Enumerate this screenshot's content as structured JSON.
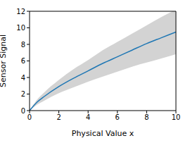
{
  "chart_data": {
    "type": "line",
    "x_label": "Physical Value x",
    "y_label": "Sensor Signal",
    "x": [
      0,
      0.5,
      1,
      2,
      3,
      4,
      5,
      6,
      7,
      8,
      9,
      10
    ],
    "series": [
      {
        "values": [
          0,
          1.0,
          1.7,
          2.9,
          3.9,
          4.8,
          5.7,
          6.5,
          7.3,
          8.1,
          8.8,
          9.5
        ],
        "color": "#1f77b4"
      }
    ],
    "band": {
      "lower": [
        0,
        0.7,
        1.2,
        2.1,
        2.8,
        3.5,
        4.1,
        4.7,
        5.3,
        5.8,
        6.3,
        6.8
      ],
      "upper": [
        0,
        1.3,
        2.2,
        3.7,
        5.0,
        6.1,
        7.3,
        8.3,
        9.3,
        10.3,
        11.3,
        12.2
      ],
      "color": "#d3d3d3"
    },
    "xlim": [
      0,
      10
    ],
    "xticks": [
      0,
      2,
      4,
      6,
      8,
      10
    ],
    "ylim": [
      0,
      12
    ],
    "yticks": [
      0,
      2,
      4,
      6,
      8,
      10,
      12
    ]
  }
}
